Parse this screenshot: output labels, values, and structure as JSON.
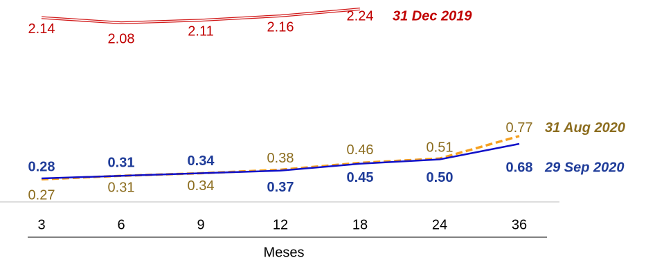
{
  "chart_data": {
    "type": "line",
    "categories": [
      "3",
      "6",
      "9",
      "12",
      "18",
      "24",
      "36"
    ],
    "x_label": "Meses",
    "ylim": [
      0,
      2.3
    ],
    "series": [
      {
        "name": "31 Dec 2019",
        "color": "#d11a1a",
        "label_color": "#c00000",
        "style": "double",
        "bold": false,
        "values": [
          2.14,
          2.08,
          2.11,
          2.16,
          2.24,
          null,
          null
        ],
        "value_labels": [
          "2.14",
          "2.08",
          "2.11",
          "2.16",
          "2.24",
          null,
          null
        ]
      },
      {
        "name": "31 Aug 2020",
        "color": "#f5a020",
        "label_color": "#8c6d1f",
        "style": "dashed",
        "bold": false,
        "values": [
          0.27,
          0.31,
          0.34,
          0.38,
          0.46,
          0.51,
          0.77
        ],
        "value_labels": [
          "0.27",
          "0.31",
          "0.34",
          "0.38",
          "0.46",
          "0.51",
          "0.77"
        ]
      },
      {
        "name": "29 Sep 2020",
        "color": "#1010c8",
        "label_color": "#1f3c99",
        "style": "solid",
        "bold": true,
        "values": [
          0.28,
          0.31,
          0.34,
          0.37,
          0.45,
          0.5,
          0.68
        ],
        "value_labels": [
          "0.28",
          "0.31",
          "0.34",
          "0.37",
          "0.45",
          "0.50",
          "0.68"
        ]
      }
    ]
  }
}
